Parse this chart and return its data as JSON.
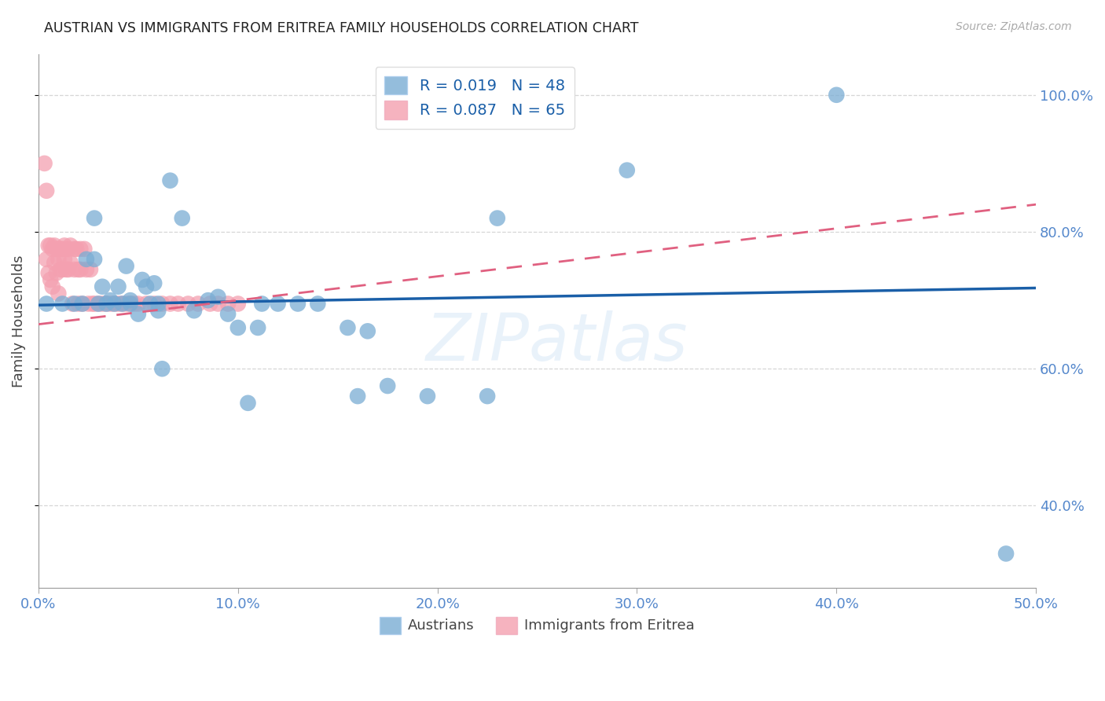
{
  "title": "AUSTRIAN VS IMMIGRANTS FROM ERITREA FAMILY HOUSEHOLDS CORRELATION CHART",
  "source": "Source: ZipAtlas.com",
  "ylabel": "Family Households",
  "xlim": [
    0.0,
    0.5
  ],
  "ylim": [
    0.28,
    1.06
  ],
  "blue_R": "0.019",
  "blue_N": "48",
  "pink_R": "0.087",
  "pink_N": "65",
  "legend_label_blue": "Austrians",
  "legend_label_pink": "Immigrants from Eritrea",
  "background_color": "#ffffff",
  "blue_color": "#7aadd4",
  "pink_color": "#f4a0b0",
  "blue_line_color": "#1a5fa8",
  "pink_line_color": "#e06080",
  "title_color": "#222222",
  "axis_color": "#5588cc",
  "grid_color": "#cccccc",
  "source_color": "#aaaaaa",
  "blue_line_x": [
    0.0,
    0.5
  ],
  "blue_line_y": [
    0.693,
    0.718
  ],
  "pink_line_x": [
    0.0,
    0.5
  ],
  "pink_line_y": [
    0.665,
    0.84
  ],
  "austrians_x": [
    0.004,
    0.012,
    0.018,
    0.022,
    0.024,
    0.028,
    0.028,
    0.03,
    0.032,
    0.034,
    0.036,
    0.038,
    0.04,
    0.042,
    0.044,
    0.046,
    0.046,
    0.05,
    0.052,
    0.054,
    0.056,
    0.058,
    0.06,
    0.06,
    0.062,
    0.066,
    0.072,
    0.078,
    0.085,
    0.09,
    0.095,
    0.1,
    0.105,
    0.11,
    0.112,
    0.12,
    0.13,
    0.14,
    0.155,
    0.16,
    0.165,
    0.175,
    0.195,
    0.225,
    0.23,
    0.295,
    0.4,
    0.485
  ],
  "austrians_y": [
    0.695,
    0.695,
    0.695,
    0.695,
    0.76,
    0.82,
    0.76,
    0.695,
    0.72,
    0.695,
    0.7,
    0.695,
    0.72,
    0.695,
    0.75,
    0.7,
    0.695,
    0.68,
    0.73,
    0.72,
    0.695,
    0.725,
    0.685,
    0.695,
    0.6,
    0.875,
    0.82,
    0.685,
    0.7,
    0.705,
    0.68,
    0.66,
    0.55,
    0.66,
    0.695,
    0.695,
    0.695,
    0.695,
    0.66,
    0.56,
    0.655,
    0.575,
    0.56,
    0.56,
    0.82,
    0.89,
    1.0,
    0.33
  ],
  "eritrea_x": [
    0.003,
    0.004,
    0.004,
    0.005,
    0.005,
    0.006,
    0.006,
    0.007,
    0.007,
    0.008,
    0.008,
    0.009,
    0.009,
    0.01,
    0.01,
    0.01,
    0.011,
    0.011,
    0.012,
    0.012,
    0.013,
    0.013,
    0.014,
    0.014,
    0.015,
    0.015,
    0.016,
    0.016,
    0.017,
    0.018,
    0.018,
    0.019,
    0.02,
    0.02,
    0.021,
    0.021,
    0.022,
    0.023,
    0.024,
    0.025,
    0.026,
    0.027,
    0.028,
    0.03,
    0.032,
    0.034,
    0.036,
    0.038,
    0.04,
    0.042,
    0.044,
    0.046,
    0.048,
    0.05,
    0.054,
    0.058,
    0.062,
    0.066,
    0.07,
    0.075,
    0.08,
    0.086,
    0.09,
    0.095,
    0.1
  ],
  "eritrea_y": [
    0.9,
    0.86,
    0.76,
    0.78,
    0.74,
    0.78,
    0.73,
    0.775,
    0.72,
    0.78,
    0.755,
    0.775,
    0.74,
    0.775,
    0.76,
    0.71,
    0.775,
    0.745,
    0.775,
    0.745,
    0.78,
    0.76,
    0.775,
    0.745,
    0.775,
    0.745,
    0.78,
    0.755,
    0.695,
    0.775,
    0.745,
    0.775,
    0.745,
    0.695,
    0.775,
    0.745,
    0.695,
    0.775,
    0.745,
    0.695,
    0.745,
    0.695,
    0.695,
    0.695,
    0.695,
    0.695,
    0.695,
    0.695,
    0.695,
    0.695,
    0.695,
    0.695,
    0.695,
    0.695,
    0.695,
    0.695,
    0.695,
    0.695,
    0.695,
    0.695,
    0.695,
    0.695,
    0.695,
    0.695,
    0.695
  ]
}
